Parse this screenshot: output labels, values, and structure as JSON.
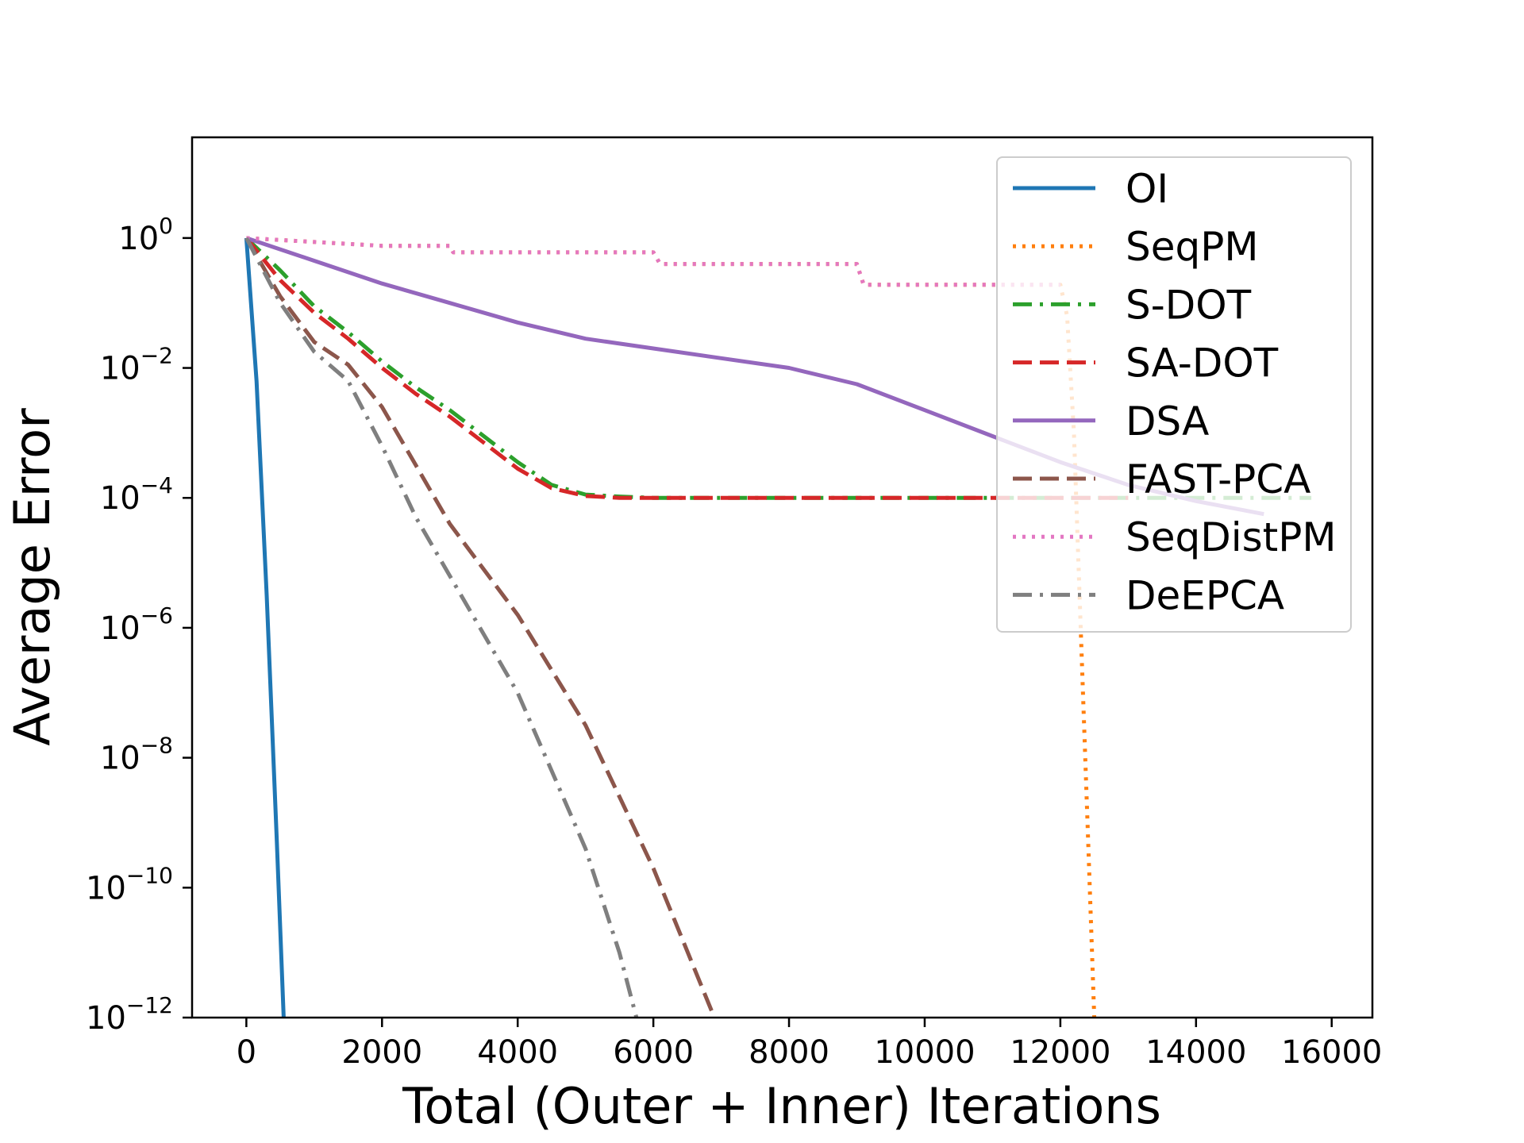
{
  "chart_data": {
    "type": "line",
    "title": "",
    "xlabel": "Total (Outer + Inner) Iterations",
    "ylabel": "Average Error",
    "xlim": [
      -800,
      16600
    ],
    "ylim_log10": [
      -12,
      1.55
    ],
    "yscale": "log",
    "grid": false,
    "legend_position": "top-right",
    "xticks": [
      0,
      2000,
      4000,
      6000,
      8000,
      10000,
      12000,
      14000,
      16000
    ],
    "xtick_labels": [
      "0",
      "2000",
      "4000",
      "6000",
      "8000",
      "10000",
      "12000",
      "14000",
      "16000"
    ],
    "yticks_log10": [
      0,
      -2,
      -4,
      -6,
      -8,
      -10,
      -12
    ],
    "ytick_labels": [
      {
        "base": "10",
        "exp": "0"
      },
      {
        "base": "10",
        "exp": "−2"
      },
      {
        "base": "10",
        "exp": "−4"
      },
      {
        "base": "10",
        "exp": "−6"
      },
      {
        "base": "10",
        "exp": "−8"
      },
      {
        "base": "10",
        "exp": "−10"
      },
      {
        "base": "10",
        "exp": "−12"
      }
    ],
    "series": [
      {
        "name": "OI",
        "color": "#1f77b4",
        "style": "solid",
        "points": [
          [
            0,
            0
          ],
          [
            150,
            -2.2
          ],
          [
            300,
            -5.5
          ],
          [
            450,
            -9.3
          ],
          [
            550,
            -12
          ]
        ]
      },
      {
        "name": "SeqPM",
        "color": "#ff7f0e",
        "style": "dotted",
        "points": [
          [
            0,
            0
          ],
          [
            2000,
            -0.12
          ],
          [
            3000,
            -0.12
          ],
          [
            3050,
            -0.22
          ],
          [
            6000,
            -0.22
          ],
          [
            6100,
            -0.4
          ],
          [
            9000,
            -0.4
          ],
          [
            9100,
            -0.72
          ],
          [
            12000,
            -0.72
          ],
          [
            12100,
            -1.2
          ],
          [
            12200,
            -3.0
          ],
          [
            12300,
            -6.0
          ],
          [
            12400,
            -9.0
          ],
          [
            12500,
            -12
          ]
        ]
      },
      {
        "name": "S-DOT",
        "color": "#2ca02c",
        "style": "dashdot",
        "points": [
          [
            0,
            0
          ],
          [
            500,
            -0.5
          ],
          [
            1000,
            -1.05
          ],
          [
            1500,
            -1.45
          ],
          [
            2000,
            -1.9
          ],
          [
            2500,
            -2.3
          ],
          [
            3000,
            -2.65
          ],
          [
            3500,
            -3.05
          ],
          [
            4000,
            -3.45
          ],
          [
            4500,
            -3.8
          ],
          [
            5000,
            -3.95
          ],
          [
            5500,
            -3.98
          ],
          [
            6000,
            -4.0
          ],
          [
            8000,
            -4.0
          ],
          [
            10000,
            -4.0
          ],
          [
            12000,
            -4.0
          ],
          [
            15700,
            -4.0
          ]
        ]
      },
      {
        "name": "SA-DOT",
        "color": "#d62728",
        "style": "dashed",
        "points": [
          [
            0,
            0
          ],
          [
            500,
            -0.65
          ],
          [
            1000,
            -1.15
          ],
          [
            1500,
            -1.55
          ],
          [
            2000,
            -2.0
          ],
          [
            2500,
            -2.4
          ],
          [
            3000,
            -2.75
          ],
          [
            3500,
            -3.15
          ],
          [
            4000,
            -3.55
          ],
          [
            4500,
            -3.85
          ],
          [
            5000,
            -3.97
          ],
          [
            5500,
            -4.0
          ],
          [
            6000,
            -4.0
          ],
          [
            8000,
            -4.0
          ],
          [
            10000,
            -4.0
          ],
          [
            12000,
            -4.0
          ],
          [
            13000,
            -4.0
          ]
        ]
      },
      {
        "name": "DSA",
        "color": "#9467bd",
        "style": "solid",
        "points": [
          [
            0,
            0
          ],
          [
            1000,
            -0.35
          ],
          [
            2000,
            -0.7
          ],
          [
            3000,
            -1.0
          ],
          [
            4000,
            -1.3
          ],
          [
            5000,
            -1.55
          ],
          [
            6000,
            -1.7
          ],
          [
            7000,
            -1.85
          ],
          [
            8000,
            -2.0
          ],
          [
            9000,
            -2.25
          ],
          [
            10000,
            -2.65
          ],
          [
            11000,
            -3.05
          ],
          [
            12000,
            -3.45
          ],
          [
            13000,
            -3.8
          ],
          [
            14000,
            -4.05
          ],
          [
            15000,
            -4.25
          ]
        ]
      },
      {
        "name": "FAST-PCA",
        "color": "#8c564b",
        "style": "dashed",
        "points": [
          [
            0,
            0
          ],
          [
            500,
            -0.9
          ],
          [
            1000,
            -1.6
          ],
          [
            1500,
            -1.95
          ],
          [
            2000,
            -2.6
          ],
          [
            2500,
            -3.5
          ],
          [
            3000,
            -4.4
          ],
          [
            4000,
            -5.8
          ],
          [
            5000,
            -7.5
          ],
          [
            6000,
            -9.7
          ],
          [
            6900,
            -12
          ]
        ]
      },
      {
        "name": "SeqDistPM",
        "color": "#e377c2",
        "style": "dotted",
        "points": [
          [
            0,
            0
          ],
          [
            2000,
            -0.12
          ],
          [
            3000,
            -0.12
          ],
          [
            3050,
            -0.22
          ],
          [
            6000,
            -0.22
          ],
          [
            6100,
            -0.4
          ],
          [
            9000,
            -0.4
          ],
          [
            9100,
            -0.72
          ],
          [
            12000,
            -0.72
          ]
        ]
      },
      {
        "name": "DeEPCA",
        "color": "#7f7f7f",
        "style": "dashdot",
        "points": [
          [
            0,
            0
          ],
          [
            500,
            -1.0
          ],
          [
            1000,
            -1.75
          ],
          [
            1500,
            -2.2
          ],
          [
            2000,
            -3.2
          ],
          [
            2500,
            -4.3
          ],
          [
            3000,
            -5.2
          ],
          [
            4000,
            -7.0
          ],
          [
            5000,
            -9.4
          ],
          [
            5500,
            -11.0
          ],
          [
            5750,
            -12
          ]
        ]
      }
    ]
  }
}
